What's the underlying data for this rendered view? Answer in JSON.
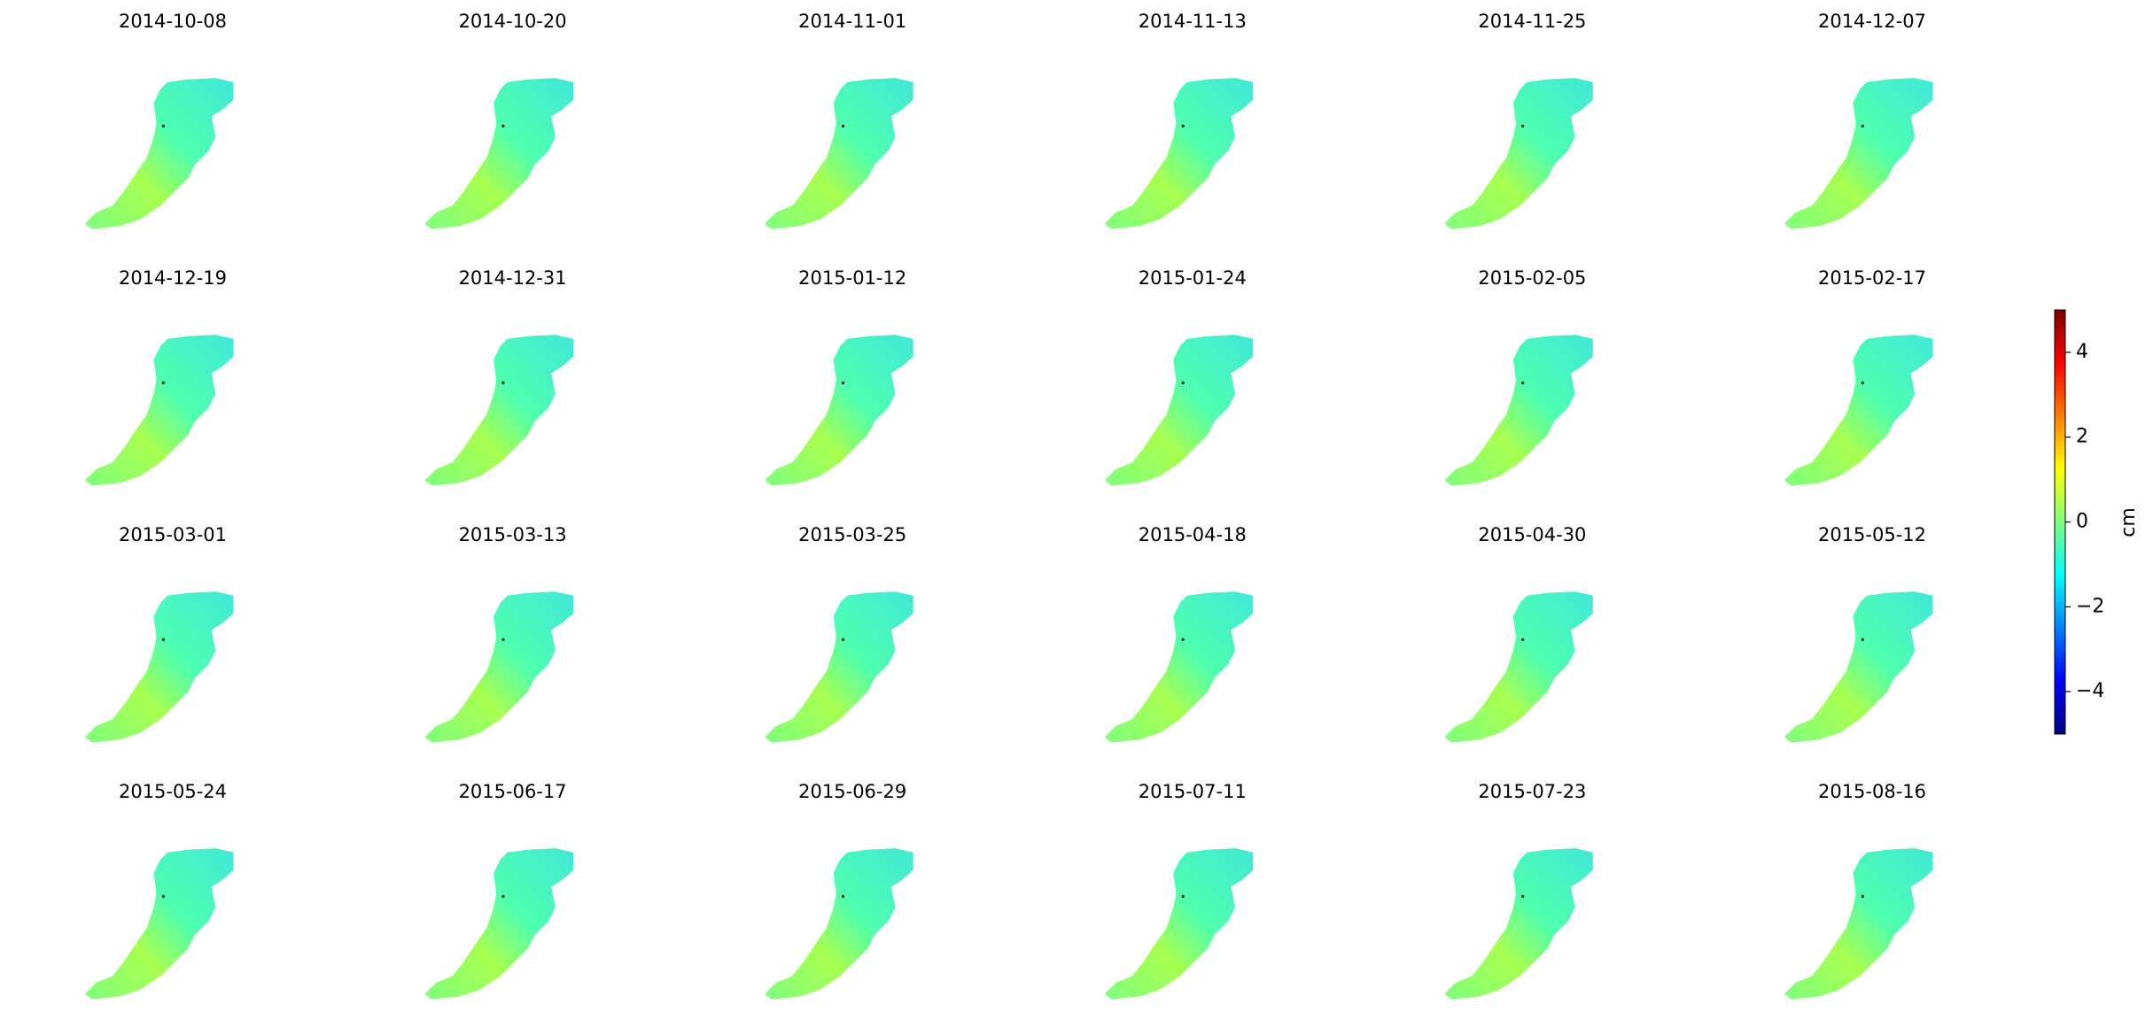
{
  "chart_data": {
    "type": "image_grid",
    "titles": [
      "2014-10-08",
      "2014-10-20",
      "2014-11-01",
      "2014-11-13",
      "2014-11-25",
      "2014-12-07",
      "2014-12-19",
      "2014-12-31",
      "2015-01-12",
      "2015-01-24",
      "2015-02-05",
      "2015-02-17",
      "2015-03-01",
      "2015-03-13",
      "2015-03-25",
      "2015-04-18",
      "2015-04-30",
      "2015-05-12",
      "2015-05-24",
      "2015-06-17",
      "2015-06-29",
      "2015-07-11",
      "2015-07-23",
      "2015-08-16"
    ],
    "columns": 6,
    "colorbar": {
      "label": "cm",
      "lim": [
        -5,
        5
      ],
      "ticks": [
        {
          "value": -4,
          "label": "−4"
        },
        {
          "value": -2,
          "label": "−2"
        },
        0,
        2,
        4
      ],
      "colors": [
        "#00007f",
        "#0000ff",
        "#007fff",
        "#00ffff",
        "#7fff7f",
        "#ffff00",
        "#ff7f00",
        "#ff0000",
        "#7f0000"
      ]
    }
  }
}
